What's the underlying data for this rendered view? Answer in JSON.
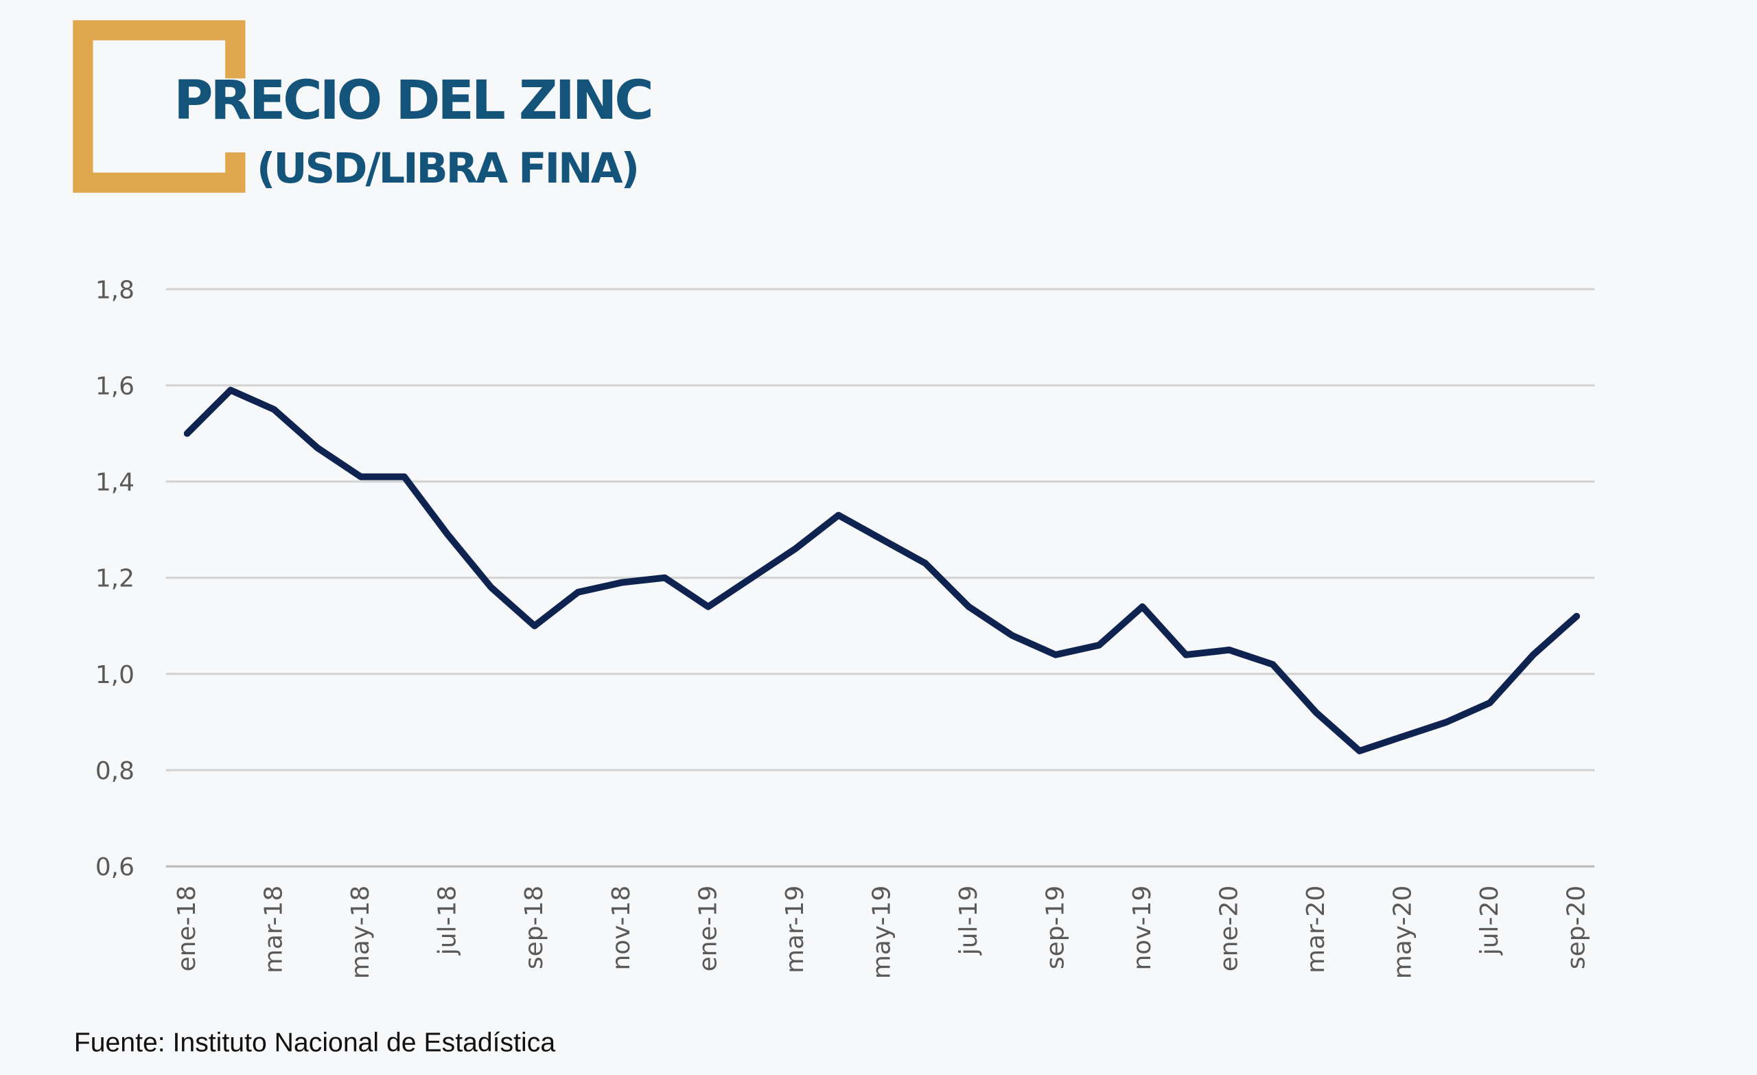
{
  "header": {
    "title": "PRECIO DEL ZINC",
    "subtitle": "(USD/LIBRA FINA)"
  },
  "source": "Fuente: Instituto Nacional de Estadística",
  "colors": {
    "accent": "#dfa84e",
    "title": "#14547a",
    "line": "#0f2350",
    "grid": "#d4d4d4",
    "tick": "#595959"
  },
  "chart_data": {
    "type": "line",
    "title": "PRECIO DEL ZINC (USD/LIBRA FINA)",
    "xlabel": "",
    "ylabel": "",
    "ylim": [
      0.6,
      1.8
    ],
    "yticks": [
      "0,6",
      "0,8",
      "1,0",
      "1,2",
      "1,4",
      "1,6",
      "1,8"
    ],
    "ytick_values": [
      0.6,
      0.8,
      1.0,
      1.2,
      1.4,
      1.6,
      1.8
    ],
    "grid": true,
    "x": [
      "ene-18",
      "feb-18",
      "mar-18",
      "abr-18",
      "may-18",
      "jun-18",
      "jul-18",
      "ago-18",
      "sep-18",
      "oct-18",
      "nov-18",
      "dic-18",
      "ene-19",
      "feb-19",
      "mar-19",
      "abr-19",
      "may-19",
      "jun-19",
      "jul-19",
      "ago-19",
      "sep-19",
      "oct-19",
      "nov-19",
      "dic-19",
      "ene-20",
      "feb-20",
      "mar-20",
      "abr-20",
      "may-20",
      "jun-20",
      "jul-20",
      "ago-20",
      "sep-20"
    ],
    "xtick_labels": [
      "ene-18",
      "mar-18",
      "may-18",
      "jul-18",
      "sep-18",
      "nov-18",
      "ene-19",
      "mar-19",
      "may-19",
      "jul-19",
      "sep-19",
      "nov-19",
      "ene-20",
      "mar-20",
      "may-20",
      "jul-20",
      "sep-20"
    ],
    "series": [
      {
        "name": "Precio del zinc",
        "values": [
          1.5,
          1.59,
          1.55,
          1.47,
          1.41,
          1.41,
          1.29,
          1.18,
          1.1,
          1.17,
          1.19,
          1.2,
          1.14,
          1.2,
          1.26,
          1.33,
          1.28,
          1.23,
          1.14,
          1.08,
          1.04,
          1.06,
          1.14,
          1.04,
          1.05,
          1.02,
          0.92,
          0.84,
          0.87,
          0.9,
          0.94,
          1.04,
          1.12
        ]
      }
    ]
  }
}
